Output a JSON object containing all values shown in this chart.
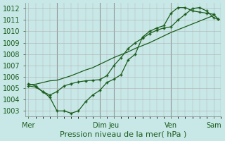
{
  "xlabel": "Pression niveau de la mer( hPa )",
  "background_color": "#c8e8e8",
  "plot_bg_color": "#c8e8e8",
  "grid_color": "#b0b0b0",
  "line_color": "#1a5c1a",
  "marker_color": "#1a5c1a",
  "x_ticks": [
    0,
    2,
    5,
    6,
    10,
    13
  ],
  "x_tick_labels": [
    "Mer",
    "",
    "Dim",
    "Jeu",
    "Ven",
    "Sam"
  ],
  "ylim": [
    1002.5,
    1012.5
  ],
  "yticks": [
    1003,
    1004,
    1005,
    1006,
    1007,
    1008,
    1009,
    1010,
    1011,
    1012
  ],
  "xlim": [
    -0.2,
    13.5
  ],
  "vlines": [
    2,
    5,
    6,
    10
  ],
  "series1_x": [
    0,
    0.5,
    1.0,
    1.5,
    2.0,
    2.5,
    3.0,
    3.5,
    4.0,
    4.5,
    5.0,
    5.5,
    6.0,
    6.5,
    7.0,
    7.5,
    8.0,
    8.5,
    9.0,
    9.5,
    10.0,
    10.5,
    11.0,
    11.5,
    12.0,
    12.5,
    13.0
  ],
  "series1_y": [
    1005.3,
    1005.35,
    1005.5,
    1005.65,
    1005.7,
    1005.9,
    1006.1,
    1006.35,
    1006.6,
    1006.8,
    1007.1,
    1007.4,
    1007.7,
    1007.95,
    1008.2,
    1008.5,
    1008.75,
    1009.0,
    1009.3,
    1009.6,
    1009.9,
    1010.15,
    1010.4,
    1010.65,
    1010.9,
    1011.15,
    1011.4
  ],
  "series2_x": [
    0,
    0.5,
    1.0,
    1.5,
    2.0,
    2.5,
    3.0,
    3.5,
    4.0,
    4.5,
    5.0,
    5.5,
    6.0,
    6.5,
    7.0,
    7.5,
    8.0,
    8.5,
    9.0,
    9.5,
    10.0,
    10.5,
    11.0,
    11.5,
    12.0,
    12.5,
    13.0,
    13.3
  ],
  "series2_y": [
    1005.2,
    1005.1,
    1004.7,
    1004.4,
    1004.7,
    1005.2,
    1005.4,
    1005.55,
    1005.65,
    1005.7,
    1005.75,
    1006.1,
    1007.0,
    1007.7,
    1008.5,
    1009.0,
    1009.4,
    1009.8,
    1010.1,
    1010.3,
    1010.4,
    1011.0,
    1011.5,
    1012.0,
    1012.1,
    1011.8,
    1011.2,
    1011.1
  ],
  "series3_x": [
    0,
    0.5,
    1.0,
    1.5,
    2.0,
    2.5,
    3.0,
    3.5,
    4.0,
    4.5,
    5.0,
    5.5,
    6.0,
    6.5,
    7.0,
    7.5,
    8.0,
    8.5,
    9.0,
    9.5,
    10.0,
    10.5,
    11.0,
    11.5,
    12.0,
    12.5,
    13.0,
    13.3
  ],
  "series3_y": [
    1005.4,
    1005.2,
    1004.7,
    1004.2,
    1003.0,
    1003.0,
    1002.8,
    1003.0,
    1003.8,
    1004.4,
    1004.8,
    1005.5,
    1005.8,
    1006.2,
    1007.5,
    1008.0,
    1009.5,
    1010.0,
    1010.3,
    1010.5,
    1011.6,
    1012.1,
    1012.1,
    1011.8,
    1011.7,
    1011.6,
    1011.5,
    1011.1
  ],
  "xlabel_fontsize": 8,
  "tick_fontsize": 7
}
